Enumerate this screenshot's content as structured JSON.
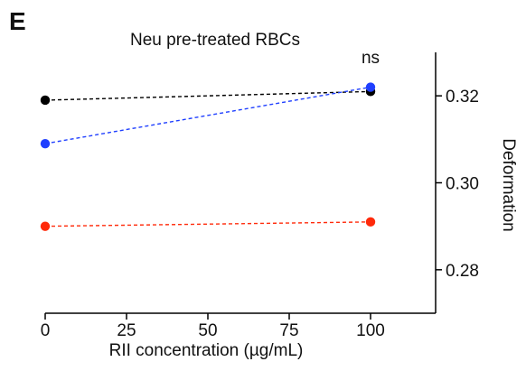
{
  "panel_label": "E",
  "chart_data": {
    "type": "line",
    "title": "Neu pre-treated RBCs",
    "xlabel": "RII concentration (µg/mL)",
    "ylabel": "Deformation",
    "x": [
      0,
      100
    ],
    "xlim": [
      0,
      120
    ],
    "ylim": [
      0.27,
      0.33
    ],
    "xticks": [
      0,
      25,
      50,
      75,
      100
    ],
    "xtick_labels": [
      "0",
      "25",
      "50",
      "75",
      "100"
    ],
    "yticks": [
      0.28,
      0.3,
      0.32
    ],
    "ytick_labels": [
      "0.28",
      "0.30",
      "0.32"
    ],
    "y_axis_side": "right",
    "line_style": "dashed",
    "grid": false,
    "annotations": [
      {
        "text": "ns",
        "x": 100
      }
    ],
    "series": [
      {
        "color": "#000000",
        "values": [
          0.319,
          0.321
        ]
      },
      {
        "color": "#1f3fff",
        "values": [
          0.309,
          0.322
        ]
      },
      {
        "color": "#ff2a0a",
        "values": [
          0.29,
          0.291
        ]
      }
    ]
  }
}
